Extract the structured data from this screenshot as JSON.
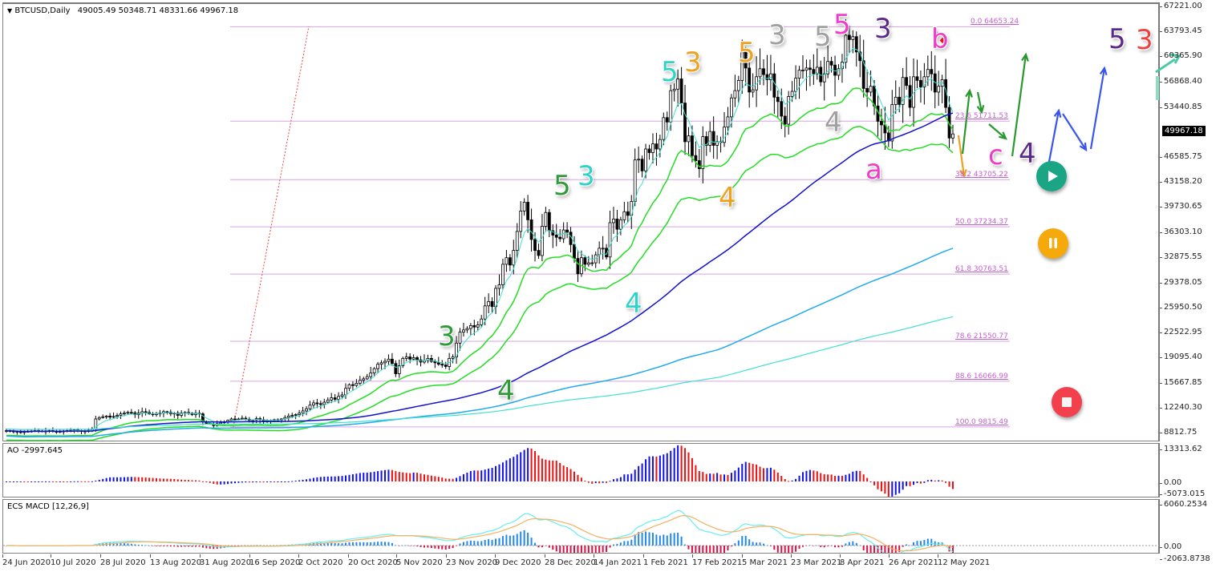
{
  "window": {
    "symbol_label": "BTCUSD,Daily",
    "ohlc": "49005.49 50348.71 48331.66 49967.18",
    "title_full": "BTCUSD,Daily  49005.49 50348.71 48331.66 49967.18"
  },
  "price_axis": {
    "ticks": [
      "67221.00",
      "63793.45",
      "60365.90",
      "56868.40",
      "53440.85",
      "46585.75",
      "43158.20",
      "39730.65",
      "36303.10",
      "32875.55",
      "29378.05",
      "25950.50",
      "22522.95",
      "19095.40",
      "15667.85",
      "12240.30",
      "8812.75"
    ],
    "current_price": "49967.18"
  },
  "ao_panel": {
    "label": "AO -2997.645",
    "axis_top": "13313.62",
    "axis_zero": "0.00",
    "axis_bottom": "-5073.015"
  },
  "macd_panel": {
    "label": "ECS MACD [12,26,9]",
    "axis_top": "6060.2534",
    "axis_zero": "0.00",
    "axis_bottom": "-2063.8738"
  },
  "time_axis": {
    "ticks": [
      "24 Jun 2020",
      "10 Jul 2020",
      "28 Jul 2020",
      "13 Aug 2020",
      "31 Aug 2020",
      "16 Sep 2020",
      "2 Oct 2020",
      "20 Oct 2020",
      "5 Nov 2020",
      "23 Nov 2020",
      "9 Dec 2020",
      "28 Dec 2020",
      "14 Jan 2021",
      "1 Feb 2021",
      "17 Feb 2021",
      "5 Mar 2021",
      "23 Mar 2021",
      "8 Apr 2021",
      "26 Apr 2021",
      "12 May 2021"
    ]
  },
  "fibonacci": [
    {
      "label": "0.0 64653.24"
    },
    {
      "label": "23.6 51711.53"
    },
    {
      "label": "38.2 43705.22"
    },
    {
      "label": "50.0 37234.37"
    },
    {
      "label": "61.8 30763.51"
    },
    {
      "label": "78.6 21550.77"
    },
    {
      "label": "88.6 16066.99"
    },
    {
      "label": "100.0 9815.49"
    }
  ],
  "wave_labels": [
    {
      "text": "3",
      "color": "#2e9a3a"
    },
    {
      "text": "4",
      "color": "#2e9a3a"
    },
    {
      "text": "5",
      "color": "#2e9a3a"
    },
    {
      "text": "3",
      "color": "#2fd3c8"
    },
    {
      "text": "4",
      "color": "#2fd3c8"
    },
    {
      "text": "5",
      "color": "#2fd3c8"
    },
    {
      "text": "3",
      "color": "#f0a020"
    },
    {
      "text": "4",
      "color": "#f0a020"
    },
    {
      "text": "5",
      "color": "#f0a020"
    },
    {
      "text": "3",
      "color": "#a0a0a0"
    },
    {
      "text": "4",
      "color": "#a0a0a0"
    },
    {
      "text": "5",
      "color": "#a0a0a0"
    },
    {
      "text": "5",
      "color": "#f03cc8"
    },
    {
      "text": "3",
      "color": "#5a2a8a"
    },
    {
      "text": "a",
      "color": "#f03cc8"
    },
    {
      "text": "b",
      "color": "#f03cc8"
    },
    {
      "text": "c",
      "color": "#f03cc8"
    },
    {
      "text": "4",
      "color": "#5a2a8a"
    },
    {
      "text": "5",
      "color": "#5a2a8a"
    },
    {
      "text": "3",
      "color": "#f04040"
    }
  ],
  "controls": {
    "play_color": "#1aa585",
    "pause_color": "#f5a90a",
    "stop_color": "#f2404c"
  },
  "colors": {
    "fib": "#d9a3e6",
    "ma_fast_green": "#22dd22",
    "ma_blue": "#1010d0",
    "ma_lightblue": "#22aaee",
    "ma_teal": "#40e0d0",
    "magenta": "#ee22ee",
    "orange": "#f5a030",
    "ao_up": "#1010ee",
    "ao_down": "#ee1010",
    "macd_hist_up": "#2288ee",
    "macd_hist_down": "#dd1144",
    "macd_line": "#66eeee",
    "signal_line": "#f5b060"
  },
  "chart_data": {
    "type": "candlestick",
    "title": "BTCUSD,Daily",
    "ohlc_last": {
      "open": 49005.49,
      "high": 50348.71,
      "low": 48331.66,
      "close": 49967.18
    },
    "x_range": [
      "24 Jun 2020",
      "12 May 2021"
    ],
    "ylim": [
      8812.75,
      67221.0
    ],
    "closes_approx": [
      9300,
      9250,
      9200,
      9150,
      9100,
      9150,
      9200,
      9250,
      9300,
      9250,
      9200,
      9250,
      9300,
      9200,
      9150,
      9200,
      9250,
      9300,
      9350,
      9400,
      9300,
      9250,
      9200,
      9350,
      9500,
      10900,
      11100,
      11200,
      11300,
      11150,
      11250,
      11400,
      11600,
      11700,
      11800,
      11750,
      11500,
      11700,
      11900,
      11800,
      11600,
      11500,
      11650,
      11700,
      11900,
      11800,
      11600,
      11700,
      11400,
      11700,
      11800,
      11700,
      11500,
      11700,
      11600,
      10500,
      10300,
      10200,
      10000,
      10250,
      10400,
      10500,
      10700,
      10900,
      10800,
      10900,
      11000,
      10850,
      10700,
      10750,
      10950,
      10800,
      10600,
      10650,
      10700,
      10800,
      10750,
      10900,
      11100,
      11300,
      11400,
      11500,
      11700,
      12000,
      12300,
      12800,
      13100,
      13000,
      12900,
      13200,
      13500,
      13800,
      13600,
      14000,
      14200,
      15100,
      15600,
      15500,
      15800,
      16200,
      16400,
      16700,
      17200,
      17800,
      18400,
      18600,
      18800,
      19100,
      18500,
      17100,
      18200,
      19200,
      19400,
      19100,
      19300,
      19000,
      18700,
      18900,
      19200,
      18800,
      18600,
      18400,
      18300,
      18100,
      19200,
      19400,
      21300,
      22800,
      23100,
      23300,
      23700,
      23500,
      23800,
      24600,
      26400,
      27000,
      26300,
      28800,
      29300,
      32100,
      33000,
      32000,
      34000,
      36600,
      39400,
      40600,
      38200,
      35500,
      34000,
      33300,
      37300,
      39200,
      36700,
      36100,
      35800,
      35600,
      36800,
      36500,
      34800,
      32900,
      30800,
      33000,
      32100,
      32300,
      32300,
      33400,
      34300,
      34300,
      33100,
      37800,
      38300,
      36900,
      38200,
      39300,
      38800,
      40700,
      46400,
      46500,
      44900,
      47900,
      47400,
      48600,
      47900,
      49200,
      52200,
      51600,
      55900,
      56100,
      57500,
      54200,
      48900,
      49700,
      47000,
      46300,
      45200,
      49600,
      48400,
      50300,
      48400,
      48900,
      48800,
      50900,
      52300,
      54900,
      55900,
      57300,
      61200,
      59000,
      55700,
      56000,
      57800,
      58900,
      58100,
      57400,
      58200,
      55000,
      54400,
      52400,
      51300,
      55100,
      55800,
      57600,
      58700,
      58700,
      59000,
      58800,
      58200,
      59100,
      57100,
      58200,
      59900,
      59400,
      58000,
      58900,
      59800,
      63500,
      62900,
      63300,
      61200,
      60000,
      56200,
      55700,
      56500,
      53800,
      51700,
      51200,
      50100,
      49000,
      54000,
      55000,
      54000,
      57700,
      56600,
      53600,
      57800,
      57300,
      56400,
      57800,
      58800,
      58200,
      55700,
      56500,
      57400,
      53600,
      49400,
      49967
    ],
    "overlays": [
      "EMA fast (green)",
      "EMA slow (green)",
      "SMA blue",
      "SMA light blue",
      "SMA teal",
      "Alligator magenta",
      "Alligator orange"
    ],
    "fib_levels": [
      {
        "pct": 0.0,
        "price": 64653.24
      },
      {
        "pct": 23.6,
        "price": 51711.53
      },
      {
        "pct": 38.2,
        "price": 43705.22
      },
      {
        "pct": 50.0,
        "price": 37234.37
      },
      {
        "pct": 61.8,
        "price": 30763.51
      },
      {
        "pct": 78.6,
        "price": 21550.77
      },
      {
        "pct": 88.6,
        "price": 16066.99
      },
      {
        "pct": 100.0,
        "price": 9815.49
      }
    ],
    "indicators": [
      {
        "name": "AO",
        "value": -2997.645,
        "ylim": [
          -5073.015,
          13313.62
        ]
      },
      {
        "name": "ECS MACD [12,26,9]",
        "ylim": [
          -2063.8738,
          6060.2534
        ]
      }
    ],
    "xlabel": "",
    "ylabel": "",
    "grid": false
  }
}
